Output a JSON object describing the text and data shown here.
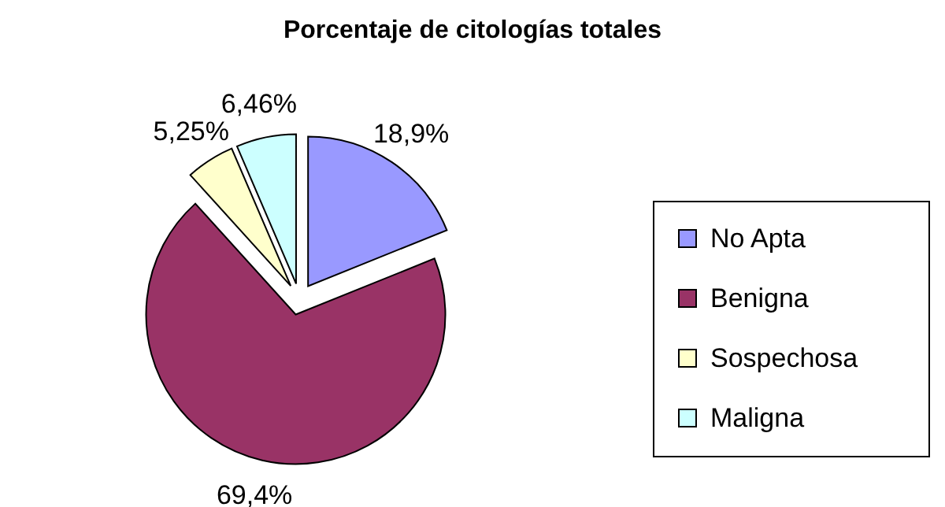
{
  "chart_data": {
    "type": "pie",
    "title": "Porcentaje de citologías totales",
    "categories": [
      "No Apta",
      "Benigna",
      "Sospechosa",
      "Maligna"
    ],
    "values": [
      18.9,
      69.4,
      5.25,
      6.46
    ],
    "value_labels": [
      "18,9%",
      "69,4%",
      "5,25%",
      "6,46%"
    ],
    "colors": [
      "#9999ff",
      "#993366",
      "#ffffcc",
      "#ccffff"
    ],
    "legend": "right"
  }
}
